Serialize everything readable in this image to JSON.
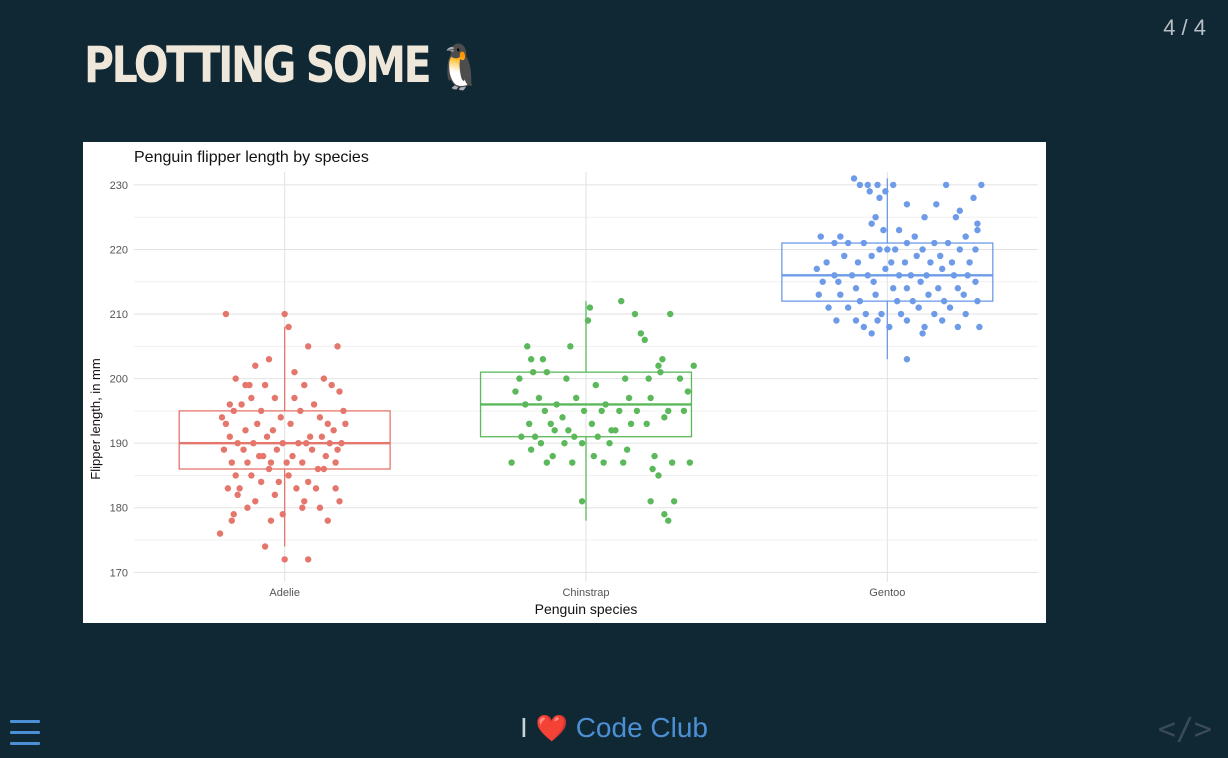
{
  "slide": {
    "title": "PLOTTING SOME",
    "title_emoji": "🐧",
    "page_number": "4 / 4"
  },
  "footer": {
    "prefix": "I",
    "heart": "❤️",
    "link_text": "Code Club"
  },
  "icons": {
    "menu": "menu-icon",
    "source": "code-icon"
  },
  "colors": {
    "background": "#0f2834",
    "Adelie": "#e5766c",
    "Chinstrap": "#5bb85b",
    "Gentoo": "#6d9be8",
    "footer_link": "#4c8fd4"
  },
  "chart_data": {
    "type": "boxplot",
    "title": "Penguin flipper length by species",
    "xlabel": "Penguin species",
    "ylabel": "Flipper length, in mm",
    "ylim": [
      170,
      232
    ],
    "yticks": [
      170,
      180,
      190,
      200,
      210,
      220,
      230
    ],
    "categories": [
      "Adelie",
      "Chinstrap",
      "Gentoo"
    ],
    "grid": true,
    "series": [
      {
        "name": "Adelie",
        "color": "#e5766c",
        "box": {
          "whisker_low": 174,
          "q1": 186,
          "median": 190,
          "q3": 195,
          "whisker_high": 208
        },
        "points": [
          [
            -0.3,
            210
          ],
          [
            0.0,
            210
          ],
          [
            0.02,
            208
          ],
          [
            -0.08,
            203
          ],
          [
            0.12,
            205
          ],
          [
            0.27,
            205
          ],
          [
            -0.15,
            202
          ],
          [
            0.05,
            201
          ],
          [
            -0.25,
            200
          ],
          [
            -0.2,
            199
          ],
          [
            -0.18,
            199
          ],
          [
            -0.1,
            199
          ],
          [
            0.1,
            199
          ],
          [
            0.2,
            200
          ],
          [
            0.24,
            199
          ],
          [
            -0.28,
            196
          ],
          [
            -0.22,
            196
          ],
          [
            -0.17,
            197
          ],
          [
            -0.05,
            197
          ],
          [
            0.05,
            197
          ],
          [
            0.15,
            196
          ],
          [
            0.28,
            198
          ],
          [
            0.3,
            195
          ],
          [
            -0.32,
            194
          ],
          [
            -0.26,
            195
          ],
          [
            -0.12,
            195
          ],
          [
            -0.02,
            194
          ],
          [
            0.08,
            195
          ],
          [
            0.18,
            194
          ],
          [
            0.22,
            193
          ],
          [
            -0.3,
            193
          ],
          [
            -0.2,
            192
          ],
          [
            -0.14,
            193
          ],
          [
            -0.06,
            192
          ],
          [
            0.03,
            193
          ],
          [
            0.13,
            191
          ],
          [
            0.25,
            192
          ],
          [
            0.31,
            193
          ],
          [
            -0.28,
            191
          ],
          [
            -0.24,
            190
          ],
          [
            -0.16,
            190
          ],
          [
            -0.09,
            191
          ],
          [
            -0.01,
            190
          ],
          [
            0.07,
            190
          ],
          [
            0.11,
            190
          ],
          [
            0.19,
            191
          ],
          [
            0.23,
            190
          ],
          [
            0.29,
            190
          ],
          [
            -0.31,
            189
          ],
          [
            -0.21,
            189
          ],
          [
            -0.11,
            188
          ],
          [
            -0.04,
            189
          ],
          [
            0.04,
            188
          ],
          [
            0.14,
            189
          ],
          [
            0.21,
            188
          ],
          [
            0.27,
            189
          ],
          [
            -0.27,
            187
          ],
          [
            -0.19,
            187
          ],
          [
            -0.13,
            188
          ],
          [
            -0.07,
            187
          ],
          [
            0.01,
            187
          ],
          [
            0.09,
            187
          ],
          [
            0.17,
            186
          ],
          [
            0.26,
            187
          ],
          [
            -0.25,
            185
          ],
          [
            -0.17,
            185
          ],
          [
            -0.08,
            186
          ],
          [
            0.02,
            185
          ],
          [
            0.12,
            184
          ],
          [
            0.2,
            186
          ],
          [
            -0.29,
            183
          ],
          [
            -0.23,
            183
          ],
          [
            -0.12,
            184
          ],
          [
            -0.03,
            184
          ],
          [
            0.06,
            183
          ],
          [
            0.16,
            183
          ],
          [
            0.26,
            183
          ],
          [
            -0.24,
            182
          ],
          [
            -0.15,
            181
          ],
          [
            -0.05,
            182
          ],
          [
            0.1,
            181
          ],
          [
            0.18,
            180
          ],
          [
            0.28,
            181
          ],
          [
            -0.26,
            179
          ],
          [
            -0.19,
            180
          ],
          [
            -0.07,
            178
          ],
          [
            -0.01,
            179
          ],
          [
            0.09,
            180
          ],
          [
            0.22,
            178
          ],
          [
            -0.33,
            176
          ],
          [
            -0.27,
            178
          ],
          [
            -0.1,
            174
          ],
          [
            0.0,
            172
          ],
          [
            0.12,
            172
          ]
        ]
      },
      {
        "name": "Chinstrap",
        "color": "#5bb85b",
        "box": {
          "whisker_low": 178,
          "q1": 191,
          "median": 196,
          "q3": 201,
          "whisker_high": 212
        },
        "points": [
          [
            0.02,
            211
          ],
          [
            0.18,
            212
          ],
          [
            0.25,
            210
          ],
          [
            0.43,
            210
          ],
          [
            0.01,
            209
          ],
          [
            -0.08,
            205
          ],
          [
            0.3,
            206
          ],
          [
            0.28,
            207
          ],
          [
            -0.3,
            205
          ],
          [
            -0.28,
            203
          ],
          [
            -0.22,
            203
          ],
          [
            0.39,
            203
          ],
          [
            0.37,
            202
          ],
          [
            0.55,
            202
          ],
          [
            0.38,
            201
          ],
          [
            -0.34,
            200
          ],
          [
            -0.27,
            201
          ],
          [
            -0.2,
            201
          ],
          [
            -0.1,
            200
          ],
          [
            0.05,
            199
          ],
          [
            0.2,
            200
          ],
          [
            0.32,
            200
          ],
          [
            0.48,
            200
          ],
          [
            -0.36,
            198
          ],
          [
            -0.24,
            197
          ],
          [
            -0.15,
            196
          ],
          [
            -0.05,
            197
          ],
          [
            0.1,
            196
          ],
          [
            0.22,
            197
          ],
          [
            0.33,
            197
          ],
          [
            0.52,
            198
          ],
          [
            -0.31,
            196
          ],
          [
            -0.21,
            195
          ],
          [
            -0.12,
            194
          ],
          [
            -0.01,
            195
          ],
          [
            0.08,
            195
          ],
          [
            0.17,
            195
          ],
          [
            0.26,
            195
          ],
          [
            0.42,
            195
          ],
          [
            0.5,
            195
          ],
          [
            -0.29,
            193
          ],
          [
            -0.18,
            193
          ],
          [
            -0.09,
            192
          ],
          [
            0.03,
            193
          ],
          [
            0.13,
            192
          ],
          [
            0.23,
            193
          ],
          [
            0.4,
            194
          ],
          [
            -0.33,
            191
          ],
          [
            -0.26,
            191
          ],
          [
            -0.16,
            192
          ],
          [
            -0.06,
            191
          ],
          [
            0.06,
            191
          ],
          [
            0.15,
            192
          ],
          [
            0.31,
            193
          ],
          [
            -0.23,
            190
          ],
          [
            -0.11,
            190
          ],
          [
            -0.02,
            190
          ],
          [
            0.12,
            190
          ],
          [
            0.21,
            189
          ],
          [
            -0.28,
            189
          ],
          [
            -0.17,
            188
          ],
          [
            -0.07,
            187
          ],
          [
            0.04,
            188
          ],
          [
            0.19,
            187
          ],
          [
            0.35,
            188
          ],
          [
            0.44,
            187
          ],
          [
            -0.38,
            187
          ],
          [
            -0.2,
            187
          ],
          [
            0.09,
            187
          ],
          [
            0.34,
            186
          ],
          [
            0.37,
            185
          ],
          [
            0.53,
            187
          ],
          [
            -0.02,
            181
          ],
          [
            0.33,
            181
          ],
          [
            0.45,
            181
          ],
          [
            0.4,
            179
          ],
          [
            0.42,
            178
          ]
        ]
      },
      {
        "name": "Gentoo",
        "color": "#6d9be8",
        "box": {
          "whisker_low": 203,
          "q1": 212,
          "median": 216,
          "q3": 221,
          "whisker_high": 231
        },
        "points": [
          [
            -0.17,
            231
          ],
          [
            -0.14,
            230
          ],
          [
            -0.1,
            230
          ],
          [
            -0.05,
            230
          ],
          [
            -0.09,
            229
          ],
          [
            -0.04,
            228
          ],
          [
            0.03,
            230
          ],
          [
            -0.01,
            229
          ],
          [
            0.1,
            227
          ],
          [
            0.3,
            230
          ],
          [
            0.48,
            230
          ],
          [
            0.19,
            225
          ],
          [
            0.25,
            227
          ],
          [
            0.37,
            226
          ],
          [
            0.35,
            225
          ],
          [
            0.44,
            228
          ],
          [
            -0.06,
            225
          ],
          [
            -0.08,
            224
          ],
          [
            -0.02,
            223
          ],
          [
            0.06,
            223
          ],
          [
            0.14,
            222
          ],
          [
            0.4,
            222
          ],
          [
            0.46,
            223
          ],
          [
            0.46,
            224
          ],
          [
            -0.34,
            222
          ],
          [
            -0.27,
            221
          ],
          [
            -0.24,
            222
          ],
          [
            -0.2,
            221
          ],
          [
            -0.12,
            221
          ],
          [
            -0.04,
            220
          ],
          [
            0.0,
            220
          ],
          [
            0.04,
            220
          ],
          [
            0.1,
            221
          ],
          [
            0.18,
            220
          ],
          [
            0.24,
            221
          ],
          [
            0.31,
            221
          ],
          [
            0.37,
            220
          ],
          [
            0.45,
            220
          ],
          [
            -0.31,
            218
          ],
          [
            -0.22,
            219
          ],
          [
            -0.15,
            218
          ],
          [
            -0.08,
            219
          ],
          [
            0.02,
            218
          ],
          [
            0.09,
            218
          ],
          [
            0.15,
            219
          ],
          [
            0.22,
            218
          ],
          [
            0.27,
            219
          ],
          [
            0.33,
            218
          ],
          [
            0.42,
            218
          ],
          [
            -0.36,
            217
          ],
          [
            -0.27,
            216
          ],
          [
            -0.18,
            216
          ],
          [
            -0.1,
            216
          ],
          [
            -0.01,
            217
          ],
          [
            0.06,
            216
          ],
          [
            0.12,
            216
          ],
          [
            0.2,
            216
          ],
          [
            0.28,
            217
          ],
          [
            0.34,
            216
          ],
          [
            0.41,
            216
          ],
          [
            -0.33,
            215
          ],
          [
            -0.25,
            215
          ],
          [
            -0.16,
            214
          ],
          [
            -0.07,
            215
          ],
          [
            0.03,
            214
          ],
          [
            0.1,
            214
          ],
          [
            0.17,
            215
          ],
          [
            0.26,
            214
          ],
          [
            0.36,
            214
          ],
          [
            0.45,
            215
          ],
          [
            -0.35,
            213
          ],
          [
            -0.24,
            213
          ],
          [
            -0.14,
            212
          ],
          [
            -0.06,
            213
          ],
          [
            0.05,
            212
          ],
          [
            0.13,
            212
          ],
          [
            0.21,
            213
          ],
          [
            0.29,
            212
          ],
          [
            0.39,
            213
          ],
          [
            0.46,
            212
          ],
          [
            -0.3,
            211
          ],
          [
            -0.2,
            211
          ],
          [
            -0.11,
            210
          ],
          [
            -0.03,
            210
          ],
          [
            0.07,
            210
          ],
          [
            0.16,
            211
          ],
          [
            0.24,
            210
          ],
          [
            0.32,
            211
          ],
          [
            0.4,
            210
          ],
          [
            -0.26,
            209
          ],
          [
            -0.16,
            209
          ],
          [
            -0.05,
            209
          ],
          [
            0.01,
            208
          ],
          [
            0.1,
            209
          ],
          [
            0.19,
            208
          ],
          [
            0.28,
            209
          ],
          [
            0.36,
            208
          ],
          [
            0.47,
            208
          ],
          [
            -0.12,
            208
          ],
          [
            -0.08,
            207
          ],
          [
            0.18,
            207
          ],
          [
            0.1,
            203
          ]
        ]
      }
    ]
  }
}
